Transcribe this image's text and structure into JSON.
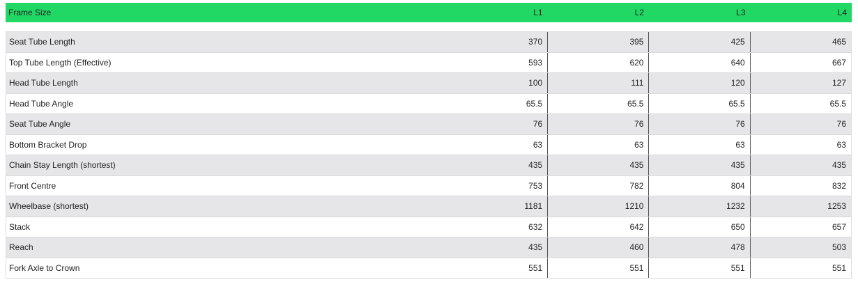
{
  "table": {
    "header": [
      "Frame Size",
      "L1",
      "L2",
      "L3",
      "L4"
    ],
    "rows": [
      [
        "Seat Tube Length",
        370,
        395,
        425,
        465
      ],
      [
        "Top Tube Length (Effective)",
        593,
        620,
        640,
        667
      ],
      [
        "Head Tube Length",
        100,
        111,
        120,
        127
      ],
      [
        "Head Tube Angle",
        65.5,
        65.5,
        65.5,
        65.5
      ],
      [
        "Seat Tube Angle",
        76,
        76,
        76,
        76
      ],
      [
        "Bottom Bracket Drop",
        63,
        63,
        63,
        63
      ],
      [
        "Chain Stay Length (shortest)",
        435,
        435,
        435,
        435
      ],
      [
        "Front Centre",
        753,
        782,
        804,
        832
      ],
      [
        "Wheelbase (shortest)",
        1181,
        1210,
        1232,
        1253
      ],
      [
        "Stack",
        632,
        642,
        650,
        657
      ],
      [
        "Reach",
        435,
        460,
        478,
        503
      ],
      [
        "Fork Axle to Crown",
        551,
        551,
        551,
        551
      ]
    ]
  }
}
